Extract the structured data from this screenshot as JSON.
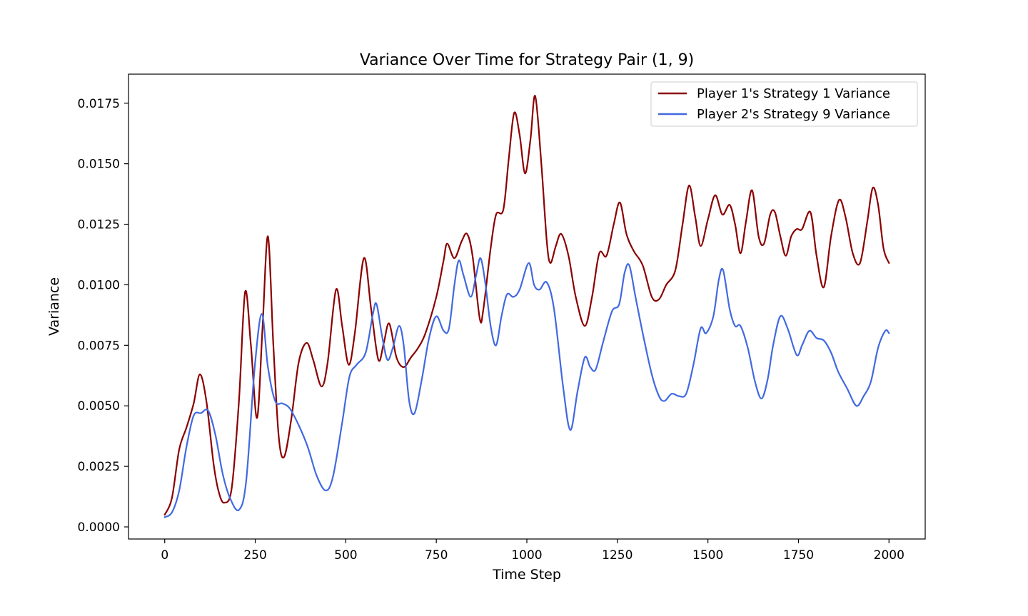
{
  "chart_data": {
    "type": "line",
    "title": "Variance Over Time for Strategy Pair (1, 9)",
    "xlabel": "Time Step",
    "ylabel": "Variance",
    "xlim": [
      -100,
      2100
    ],
    "ylim": [
      -0.0005,
      0.0187
    ],
    "xticks": [
      0,
      250,
      500,
      750,
      1000,
      1250,
      1500,
      1750,
      2000
    ],
    "xtick_labels": [
      "0",
      "250",
      "500",
      "750",
      "1000",
      "1250",
      "1500",
      "1750",
      "2000"
    ],
    "yticks": [
      0.0,
      0.0025,
      0.005,
      0.0075,
      0.01,
      0.0125,
      0.015,
      0.0175
    ],
    "ytick_labels": [
      "0.0000",
      "0.0025",
      "0.0050",
      "0.0075",
      "0.0100",
      "0.0125",
      "0.0150",
      "0.0175"
    ],
    "grid": false,
    "legend_position": "top-right",
    "series": [
      {
        "name": "Player 1's Strategy 1 Variance",
        "color": "#8b0000",
        "points": [
          [
            0,
            0.0005
          ],
          [
            20,
            0.0012
          ],
          [
            40,
            0.0032
          ],
          [
            60,
            0.0041
          ],
          [
            80,
            0.0051
          ],
          [
            97,
            0.0063
          ],
          [
            115,
            0.0052
          ],
          [
            135,
            0.0026
          ],
          [
            150,
            0.0014
          ],
          [
            165,
            0.001
          ],
          [
            185,
            0.0016
          ],
          [
            205,
            0.0052
          ],
          [
            222,
            0.0097
          ],
          [
            238,
            0.0075
          ],
          [
            255,
            0.0045
          ],
          [
            270,
            0.0082
          ],
          [
            285,
            0.012
          ],
          [
            300,
            0.0075
          ],
          [
            315,
            0.0037
          ],
          [
            330,
            0.0029
          ],
          [
            350,
            0.0045
          ],
          [
            370,
            0.0068
          ],
          [
            392,
            0.0076
          ],
          [
            410,
            0.0069
          ],
          [
            433,
            0.0058
          ],
          [
            450,
            0.0068
          ],
          [
            473,
            0.0098
          ],
          [
            490,
            0.0083
          ],
          [
            508,
            0.0067
          ],
          [
            525,
            0.008
          ],
          [
            550,
            0.0111
          ],
          [
            570,
            0.009
          ],
          [
            590,
            0.0069
          ],
          [
            605,
            0.0076
          ],
          [
            620,
            0.0084
          ],
          [
            640,
            0.007
          ],
          [
            660,
            0.0066
          ],
          [
            680,
            0.007
          ],
          [
            700,
            0.0074
          ],
          [
            720,
            0.008
          ],
          [
            750,
            0.0095
          ],
          [
            770,
            0.011
          ],
          [
            780,
            0.0117
          ],
          [
            800,
            0.0111
          ],
          [
            820,
            0.0118
          ],
          [
            835,
            0.0121
          ],
          [
            850,
            0.0112
          ],
          [
            870,
            0.0086
          ],
          [
            880,
            0.009
          ],
          [
            900,
            0.0115
          ],
          [
            915,
            0.0129
          ],
          [
            935,
            0.0131
          ],
          [
            950,
            0.0152
          ],
          [
            965,
            0.0171
          ],
          [
            980,
            0.0162
          ],
          [
            995,
            0.0146
          ],
          [
            1010,
            0.016
          ],
          [
            1023,
            0.0178
          ],
          [
            1040,
            0.015
          ],
          [
            1055,
            0.0118
          ],
          [
            1065,
            0.0109
          ],
          [
            1080,
            0.0116
          ],
          [
            1095,
            0.0121
          ],
          [
            1115,
            0.0112
          ],
          [
            1135,
            0.0095
          ],
          [
            1160,
            0.0083
          ],
          [
            1180,
            0.0095
          ],
          [
            1200,
            0.0113
          ],
          [
            1220,
            0.0112
          ],
          [
            1240,
            0.0125
          ],
          [
            1257,
            0.0134
          ],
          [
            1275,
            0.0121
          ],
          [
            1295,
            0.0114
          ],
          [
            1320,
            0.0108
          ],
          [
            1345,
            0.0095
          ],
          [
            1365,
            0.0094
          ],
          [
            1385,
            0.01
          ],
          [
            1410,
            0.0106
          ],
          [
            1430,
            0.0125
          ],
          [
            1448,
            0.0141
          ],
          [
            1465,
            0.0128
          ],
          [
            1480,
            0.0116
          ],
          [
            1500,
            0.0127
          ],
          [
            1520,
            0.0137
          ],
          [
            1540,
            0.0129
          ],
          [
            1560,
            0.0133
          ],
          [
            1575,
            0.0125
          ],
          [
            1590,
            0.0113
          ],
          [
            1605,
            0.0126
          ],
          [
            1622,
            0.0139
          ],
          [
            1640,
            0.012
          ],
          [
            1655,
            0.0117
          ],
          [
            1672,
            0.0129
          ],
          [
            1685,
            0.013
          ],
          [
            1700,
            0.012
          ],
          [
            1715,
            0.0112
          ],
          [
            1730,
            0.012
          ],
          [
            1745,
            0.0123
          ],
          [
            1760,
            0.0123
          ],
          [
            1783,
            0.013
          ],
          [
            1800,
            0.0112
          ],
          [
            1820,
            0.0099
          ],
          [
            1840,
            0.012
          ],
          [
            1862,
            0.0135
          ],
          [
            1880,
            0.0128
          ],
          [
            1900,
            0.0113
          ],
          [
            1920,
            0.0109
          ],
          [
            1940,
            0.0126
          ],
          [
            1955,
            0.014
          ],
          [
            1970,
            0.0133
          ],
          [
            1985,
            0.0115
          ],
          [
            2000,
            0.0109
          ]
        ]
      },
      {
        "name": "Player 2's Strategy 9 Variance",
        "color": "#4169e1",
        "points": [
          [
            0,
            0.0004
          ],
          [
            20,
            0.0006
          ],
          [
            40,
            0.0015
          ],
          [
            60,
            0.0033
          ],
          [
            80,
            0.0046
          ],
          [
            100,
            0.0047
          ],
          [
            120,
            0.0048
          ],
          [
            140,
            0.0038
          ],
          [
            160,
            0.0022
          ],
          [
            180,
            0.0012
          ],
          [
            205,
            0.0007
          ],
          [
            225,
            0.0019
          ],
          [
            248,
            0.0065
          ],
          [
            268,
            0.0088
          ],
          [
            285,
            0.0066
          ],
          [
            305,
            0.0052
          ],
          [
            325,
            0.0051
          ],
          [
            345,
            0.0049
          ],
          [
            370,
            0.0042
          ],
          [
            395,
            0.0033
          ],
          [
            420,
            0.0021
          ],
          [
            445,
            0.0015
          ],
          [
            465,
            0.0021
          ],
          [
            490,
            0.0043
          ],
          [
            510,
            0.0062
          ],
          [
            530,
            0.0067
          ],
          [
            555,
            0.0072
          ],
          [
            575,
            0.0088
          ],
          [
            585,
            0.0092
          ],
          [
            600,
            0.0079
          ],
          [
            615,
            0.0069
          ],
          [
            630,
            0.0074
          ],
          [
            647,
            0.0083
          ],
          [
            660,
            0.0075
          ],
          [
            675,
            0.0052
          ],
          [
            690,
            0.0047
          ],
          [
            710,
            0.0061
          ],
          [
            730,
            0.0078
          ],
          [
            750,
            0.0087
          ],
          [
            770,
            0.0081
          ],
          [
            785,
            0.0082
          ],
          [
            800,
            0.01
          ],
          [
            812,
            0.011
          ],
          [
            825,
            0.0104
          ],
          [
            845,
            0.0095
          ],
          [
            860,
            0.0104
          ],
          [
            872,
            0.0111
          ],
          [
            885,
            0.0101
          ],
          [
            900,
            0.0083
          ],
          [
            915,
            0.0075
          ],
          [
            930,
            0.0087
          ],
          [
            945,
            0.0096
          ],
          [
            963,
            0.0095
          ],
          [
            980,
            0.0098
          ],
          [
            1005,
            0.0109
          ],
          [
            1020,
            0.01
          ],
          [
            1035,
            0.0098
          ],
          [
            1055,
            0.0101
          ],
          [
            1075,
            0.009
          ],
          [
            1100,
            0.0058
          ],
          [
            1120,
            0.004
          ],
          [
            1140,
            0.0056
          ],
          [
            1160,
            0.007
          ],
          [
            1175,
            0.0066
          ],
          [
            1190,
            0.0065
          ],
          [
            1210,
            0.0076
          ],
          [
            1235,
            0.0089
          ],
          [
            1255,
            0.0092
          ],
          [
            1270,
            0.0105
          ],
          [
            1283,
            0.0108
          ],
          [
            1300,
            0.0095
          ],
          [
            1320,
            0.008
          ],
          [
            1345,
            0.0063
          ],
          [
            1365,
            0.0054
          ],
          [
            1380,
            0.0052
          ],
          [
            1400,
            0.0055
          ],
          [
            1420,
            0.0054
          ],
          [
            1440,
            0.0055
          ],
          [
            1460,
            0.0067
          ],
          [
            1480,
            0.0082
          ],
          [
            1495,
            0.008
          ],
          [
            1515,
            0.0087
          ],
          [
            1530,
            0.0102
          ],
          [
            1542,
            0.0106
          ],
          [
            1560,
            0.009
          ],
          [
            1575,
            0.0083
          ],
          [
            1590,
            0.0083
          ],
          [
            1610,
            0.0074
          ],
          [
            1630,
            0.006
          ],
          [
            1648,
            0.0053
          ],
          [
            1665,
            0.0061
          ],
          [
            1680,
            0.0075
          ],
          [
            1700,
            0.0087
          ],
          [
            1720,
            0.0082
          ],
          [
            1745,
            0.0071
          ],
          [
            1760,
            0.0075
          ],
          [
            1780,
            0.0081
          ],
          [
            1800,
            0.0078
          ],
          [
            1820,
            0.0077
          ],
          [
            1840,
            0.0072
          ],
          [
            1860,
            0.0064
          ],
          [
            1885,
            0.0057
          ],
          [
            1910,
            0.005
          ],
          [
            1930,
            0.0054
          ],
          [
            1950,
            0.006
          ],
          [
            1970,
            0.0074
          ],
          [
            1990,
            0.0081
          ],
          [
            2000,
            0.008
          ]
        ]
      }
    ]
  }
}
